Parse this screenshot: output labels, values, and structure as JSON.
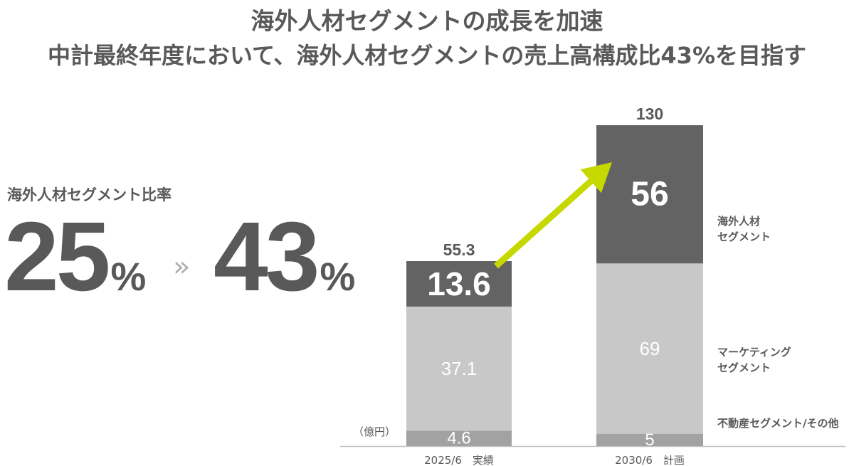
{
  "header": {
    "title_line1": "海外人材セグメントの成長を加速",
    "title_line2": "中計最終年度において、海外人材セグメントの売上高構成比43%を目指す"
  },
  "kpi": {
    "label": "海外人材セグメント比率",
    "from_value": "25",
    "from_unit": "%",
    "separator": "»",
    "to_value": "43",
    "to_unit": "%"
  },
  "colors": {
    "overseas": "#636363",
    "marketing": "#c8c8c8",
    "realestate": "#a2a2a2",
    "arrow": "#c5d800",
    "axis": "#c0c0c0",
    "text": "#595959"
  },
  "chart_data": {
    "type": "bar",
    "stacked": true,
    "unit_label": "（億円）",
    "categories": [
      "2025/6　実績",
      "2030/6　計画"
    ],
    "totals": [
      "55.3",
      "130"
    ],
    "series": [
      {
        "name": "不動産セグメント/その他",
        "values": [
          4.6,
          5
        ],
        "labels": [
          "4.6",
          "5"
        ],
        "color": "#a2a2a2",
        "label_color": "#ffffff"
      },
      {
        "name": "マーケティング\nセグメント",
        "values": [
          37.1,
          69
        ],
        "labels": [
          "37.1",
          "69"
        ],
        "color": "#c8c8c8",
        "label_color": "#ffffff"
      },
      {
        "name": "海外人材\nセグメント",
        "values": [
          13.6,
          56
        ],
        "labels": [
          "13.6",
          "56"
        ],
        "color": "#636363",
        "label_color": "#ffffff"
      }
    ]
  }
}
